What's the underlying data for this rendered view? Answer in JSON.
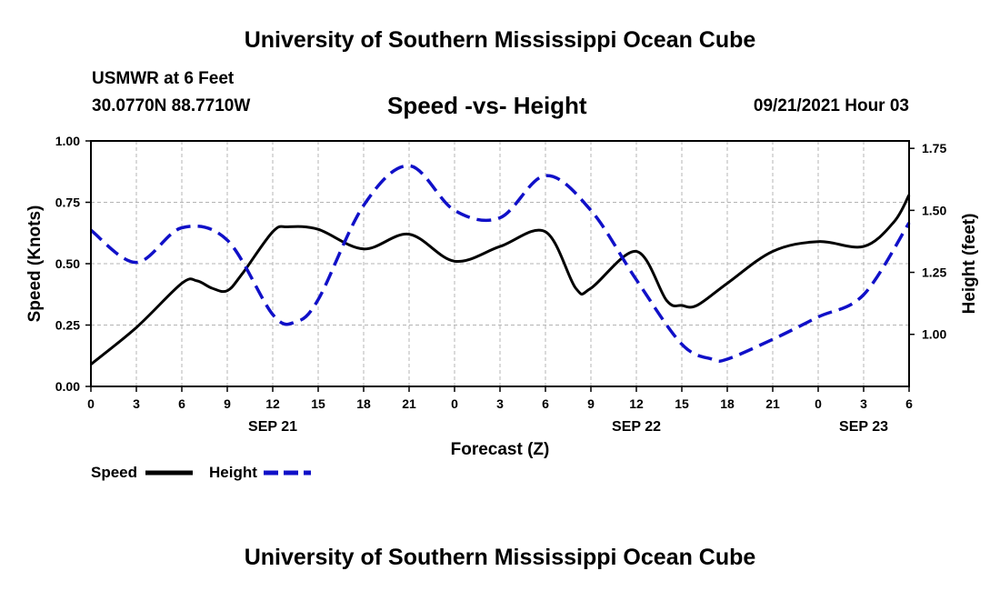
{
  "header": {
    "title": "University of Southern Mississippi Ocean Cube",
    "station": "USMWR at 6 Feet",
    "coords": "30.0770N  88.7710W",
    "chart_title": "Speed -vs- Height",
    "run_time": "09/21/2021 Hour 03"
  },
  "footer": {
    "title": "University of Southern Mississippi Ocean Cube"
  },
  "colors": {
    "speed": "#000000",
    "height": "#1010c8",
    "grid": "#b4b4b4"
  },
  "chart_data": {
    "type": "line",
    "title": "Speed -vs- Height",
    "xlabel": "Forecast (Z)",
    "ylabel": "Speed (Knots)",
    "y2label": "Height (feet)",
    "xlim": [
      0,
      54
    ],
    "ylim": [
      0,
      1
    ],
    "y2lim": [
      0.79,
      1.78
    ],
    "grid": true,
    "x_ticks": [
      0,
      3,
      6,
      9,
      12,
      15,
      18,
      21,
      24,
      27,
      30,
      33,
      36,
      39,
      42,
      45,
      48,
      51,
      54
    ],
    "x_tick_labels": [
      "0",
      "3",
      "6",
      "9",
      "12",
      "15",
      "18",
      "21",
      "0",
      "3",
      "6",
      "9",
      "12",
      "15",
      "18",
      "21",
      "0",
      "3",
      "6"
    ],
    "date_labels": [
      {
        "x": 12,
        "label": "SEP 21"
      },
      {
        "x": 36,
        "label": "SEP 22"
      },
      {
        "x": 51,
        "label": "SEP 23"
      }
    ],
    "y_ticks": [
      0.0,
      0.25,
      0.5,
      0.75,
      1.0
    ],
    "y_tick_labels": [
      "0.00",
      "0.25",
      "0.50",
      "0.75",
      "1.00"
    ],
    "y2_ticks": [
      1.0,
      1.25,
      1.5,
      1.75
    ],
    "y2_tick_labels": [
      "1.00",
      "1.25",
      "1.50",
      "1.75"
    ],
    "legend": [
      {
        "name": "Speed",
        "style": "solid"
      },
      {
        "name": "Height",
        "style": "dashed"
      }
    ],
    "legend_position": "bottom-left",
    "series": [
      {
        "name": "Speed",
        "axis": "left",
        "style": "solid",
        "x": [
          0,
          3,
          6,
          7,
          8,
          9,
          10,
          12,
          13,
          15,
          18,
          21,
          24,
          27,
          30,
          32,
          33,
          36,
          38,
          39,
          40,
          42,
          45,
          48,
          51,
          53,
          54
        ],
        "values": [
          0.09,
          0.24,
          0.42,
          0.43,
          0.4,
          0.39,
          0.46,
          0.63,
          0.65,
          0.64,
          0.56,
          0.62,
          0.51,
          0.57,
          0.63,
          0.4,
          0.4,
          0.55,
          0.35,
          0.33,
          0.33,
          0.42,
          0.55,
          0.59,
          0.57,
          0.67,
          0.78
        ]
      },
      {
        "name": "Height",
        "axis": "right",
        "style": "dashed",
        "x": [
          0,
          3,
          6,
          9,
          12,
          13.5,
          15,
          18,
          21,
          24,
          27,
          30,
          33,
          36,
          39,
          41,
          42,
          45,
          48,
          51,
          54
        ],
        "values": [
          1.42,
          1.29,
          1.43,
          1.38,
          1.08,
          1.05,
          1.14,
          1.52,
          1.68,
          1.5,
          1.47,
          1.64,
          1.5,
          1.22,
          0.96,
          0.9,
          0.9,
          0.98,
          1.07,
          1.16,
          1.45
        ]
      }
    ]
  }
}
